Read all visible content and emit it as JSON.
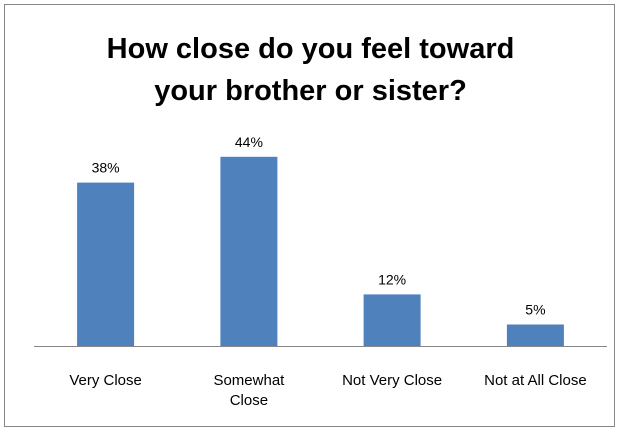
{
  "chart_data": {
    "type": "bar",
    "title_lines": [
      "How close do you feel toward",
      "your brother or sister?"
    ],
    "categories": [
      [
        "Very Close"
      ],
      [
        "Somewhat",
        "Close"
      ],
      [
        "Not Very Close"
      ],
      [
        "Not at All Close"
      ]
    ],
    "values": [
      38,
      44,
      12,
      5
    ],
    "data_labels": [
      "38%",
      "44%",
      "12%",
      "5%"
    ],
    "ylim": [
      0,
      50
    ],
    "grid": false,
    "legend": "none",
    "bar_color": "#4F81BD",
    "axis_color": "#868686"
  }
}
